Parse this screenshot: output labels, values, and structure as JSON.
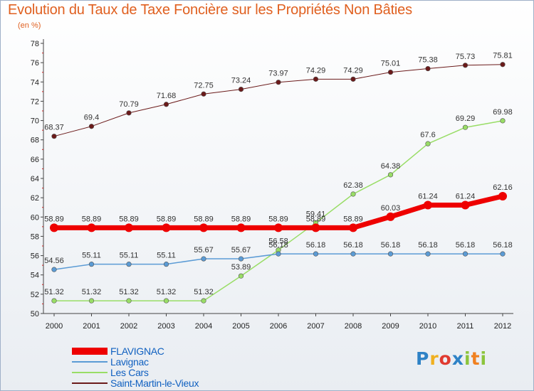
{
  "header": {
    "title": "Evolution du Taux de Taxe Foncière sur les Propriétés Non Bâties",
    "subtitle": "(en %)"
  },
  "logo": {
    "text": "Proxiti",
    "letters": [
      {
        "ch": "P",
        "color": "#2e82c6"
      },
      {
        "ch": "r",
        "color": "#f0b020"
      },
      {
        "ch": "o",
        "color": "#e03a30"
      },
      {
        "ch": "x",
        "color": "#2e82c6"
      },
      {
        "ch": "i",
        "color": "#8cc43c"
      },
      {
        "ch": "t",
        "color": "#f08020"
      },
      {
        "ch": "i",
        "color": "#8cc43c"
      }
    ]
  },
  "colors": {
    "title": "#e06020",
    "axis": "#444444",
    "grid_ticks": "#cc2222"
  },
  "chart_data": {
    "type": "line",
    "title": "Evolution du Taux de Taxe Foncière sur les Propriétés Non Bâties",
    "ylabel": "(en %)",
    "xlabel": "",
    "x": [
      "2000",
      "2001",
      "2002",
      "2003",
      "2004",
      "2005",
      "2006",
      "2007",
      "2008",
      "2009",
      "2010",
      "2011",
      "2012"
    ],
    "ylim": [
      50,
      78
    ],
    "yticks": [
      50,
      52,
      54,
      56,
      58,
      60,
      62,
      64,
      66,
      68,
      70,
      72,
      74,
      76,
      78
    ],
    "grid": false,
    "legend_position": "bottom-left",
    "series": [
      {
        "name": "Saint-Martin-le-Vieux",
        "color": "#6b1a1a",
        "width": 1,
        "values": [
          68.37,
          69.4,
          70.79,
          71.68,
          72.75,
          73.24,
          73.97,
          74.29,
          74.29,
          75.01,
          75.38,
          75.73,
          75.81
        ],
        "labels": [
          "68.37",
          "69.4",
          "70.79",
          "71.68",
          "72.75",
          "73.24",
          "73.97",
          "74.29",
          "74.29",
          "75.01",
          "75.38",
          "75.73",
          "75.81"
        ]
      },
      {
        "name": "Les Cars",
        "color": "#99dd66",
        "width": 1.5,
        "values": [
          51.32,
          51.32,
          51.32,
          51.32,
          51.32,
          53.89,
          56.58,
          59.41,
          62.38,
          64.38,
          67.6,
          69.29,
          69.98
        ],
        "labels": [
          "51.32",
          "51.32",
          "51.32",
          "51.32",
          "51.32",
          "53.89",
          "56.58",
          "59.41",
          "62.38",
          "64.38",
          "67.6",
          "69.29",
          "69.98"
        ]
      },
      {
        "name": "Lavignac",
        "color": "#5b9bd5",
        "width": 1.5,
        "values": [
          54.56,
          55.11,
          55.11,
          55.11,
          55.67,
          55.67,
          56.18,
          56.18,
          56.18,
          56.18,
          56.18,
          56.18,
          56.18
        ],
        "labels": [
          "54.56",
          "55.11",
          "55.11",
          "55.11",
          "55.67",
          "55.67",
          "56.18",
          "56.18",
          "56.18",
          "56.18",
          "56.18",
          "56.18",
          "56.18"
        ]
      },
      {
        "name": "FLAVIGNAC",
        "color": "#ee0000",
        "width": 7,
        "values": [
          58.89,
          58.89,
          58.89,
          58.89,
          58.89,
          58.89,
          58.89,
          58.89,
          58.89,
          60.03,
          61.24,
          61.24,
          62.16
        ],
        "labels": [
          "58.89",
          "58.89",
          "58.89",
          "58.89",
          "58.89",
          "58.89",
          "58.89",
          "58.89",
          "58.89",
          "60.03",
          "61.24",
          "61.24",
          "62.16"
        ]
      }
    ],
    "legend": [
      "FLAVIGNAC",
      "Lavignac",
      "Les Cars",
      "Saint-Martin-le-Vieux"
    ]
  }
}
